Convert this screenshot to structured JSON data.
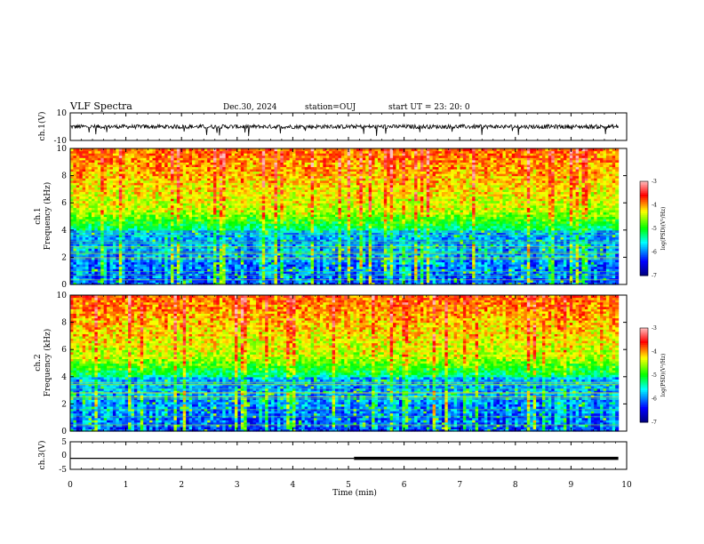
{
  "header": {
    "title": "VLF Spectra",
    "date": "Dec.30, 2024",
    "station": "station=OUJ",
    "start_time": "start  UT =   23: 20: 0"
  },
  "chart_data": [
    {
      "id": "ch1_voltage",
      "type": "line",
      "ylabel": "ch.1(V)",
      "ylim": [
        -10,
        10
      ],
      "yticks": [
        "10",
        "-10"
      ],
      "baseline": 0,
      "description_values": {
        "level": 0,
        "noise_amplitude": 1.5,
        "spike_count": 12
      }
    },
    {
      "id": "ch1_spectrogram",
      "type": "heatmap",
      "ylabel_top": "ch.1",
      "ylabel": "Frequency  (kHz)",
      "ylim": [
        0,
        10
      ],
      "yticks": [
        "0",
        "2",
        "4",
        "6",
        "8",
        "10"
      ],
      "colorbar": {
        "label": "log(PSD)(V²/Hz)",
        "range": [
          -7,
          -3
        ],
        "ticks": [
          "-3",
          "-4",
          "-5",
          "-6",
          "-7"
        ]
      }
    },
    {
      "id": "ch2_spectrogram",
      "type": "heatmap",
      "ylabel_top": "ch.2",
      "ylabel": "Frequency  (kHz)",
      "ylim": [
        0,
        10
      ],
      "yticks": [
        "0",
        "2",
        "4",
        "6",
        "8",
        "10"
      ],
      "colorbar": {
        "label": "log(PSD)(V²/Hz)",
        "range": [
          -7,
          -3
        ],
        "ticks": [
          "-3",
          "-4",
          "-5",
          "-6",
          "-7"
        ]
      }
    },
    {
      "id": "ch3_voltage",
      "type": "line",
      "ylabel": "ch.3(V)",
      "ylim": [
        -5,
        5
      ],
      "yticks": [
        "5",
        "0",
        "-5"
      ],
      "x": [
        0,
        5.1,
        5.1,
        9.85
      ],
      "y": [
        -1.0,
        -1.0,
        -1.0,
        -1.0
      ],
      "thick_from": 5.1
    }
  ],
  "x_axis": {
    "label": "Time  (min)",
    "range": [
      0,
      10
    ],
    "ticks": [
      "0",
      "1",
      "2",
      "3",
      "4",
      "5",
      "6",
      "7",
      "8",
      "9",
      "10"
    ],
    "data_end": 9.85
  },
  "colors": {
    "axis": "#000000",
    "line": "#000000",
    "colormap": [
      "#000080",
      "#0000ff",
      "#00ffff",
      "#00ff00",
      "#ffff00",
      "#ff0000",
      "#ffc0c0"
    ]
  }
}
